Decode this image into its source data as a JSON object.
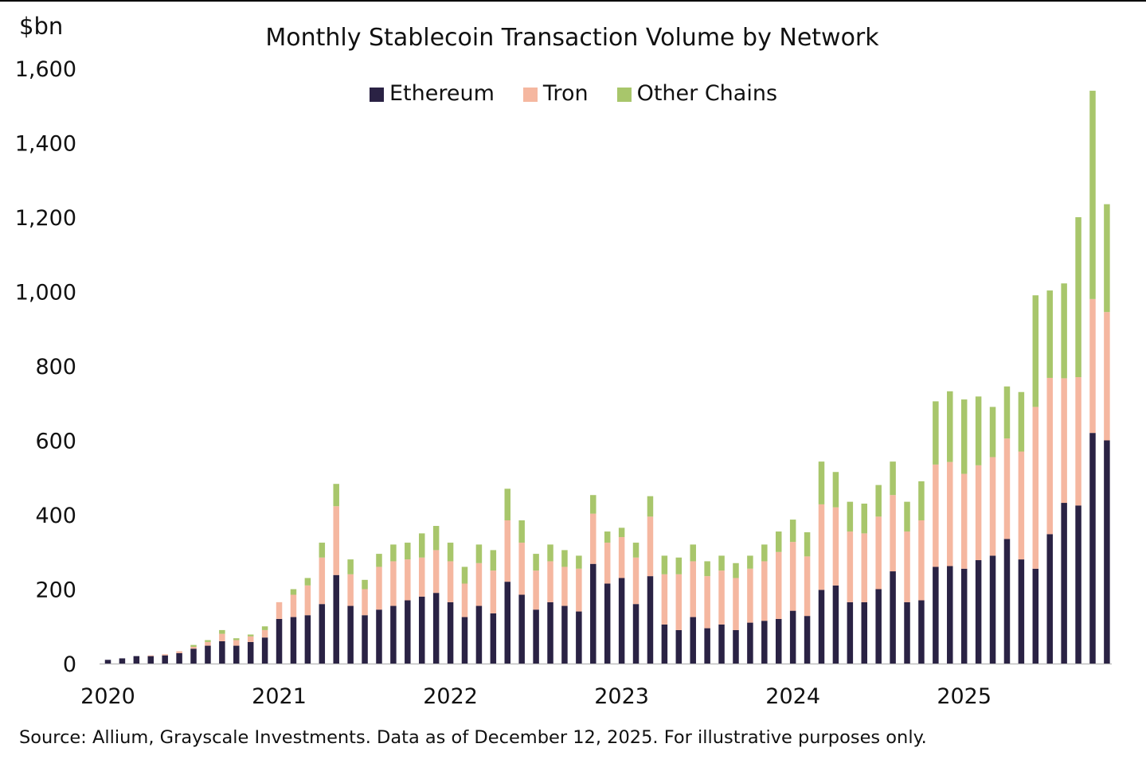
{
  "header": {
    "unit_label": "$bn",
    "title": "Monthly Stablecoin Transaction Volume by Network"
  },
  "legend": [
    {
      "label": "Ethereum",
      "color": "#2a2244"
    },
    {
      "label": "Tron",
      "color": "#f5b7a0"
    },
    {
      "label": "Other Chains",
      "color": "#a8c66b"
    }
  ],
  "footer": {
    "source": "Source: Allium, Grayscale Investments. Data as of December 12, 2025. For illustrative purposes only."
  },
  "chart_data": {
    "type": "bar",
    "stacked": true,
    "title": "Monthly Stablecoin Transaction Volume by Network",
    "ylabel": "$bn",
    "xlabel": "",
    "ylim": [
      0,
      1600
    ],
    "yticks": [
      0,
      200,
      400,
      600,
      800,
      1000,
      1200,
      1400,
      1600
    ],
    "yticklabels": [
      "0",
      "200",
      "400",
      "600",
      "800",
      "1,000",
      "1,200",
      "1,400",
      "1,600"
    ],
    "xticklabels": [
      "2020",
      "2021",
      "2022",
      "2023",
      "2024",
      "2025"
    ],
    "grid": false,
    "legend_position": "top-center",
    "categories": [
      "2020-01",
      "2020-02",
      "2020-03",
      "2020-04",
      "2020-05",
      "2020-06",
      "2020-07",
      "2020-08",
      "2020-09",
      "2020-10",
      "2020-11",
      "2020-12",
      "2021-01",
      "2021-02",
      "2021-03",
      "2021-04",
      "2021-05",
      "2021-06",
      "2021-07",
      "2021-08",
      "2021-09",
      "2021-10",
      "2021-11",
      "2021-12",
      "2022-01",
      "2022-02",
      "2022-03",
      "2022-04",
      "2022-05",
      "2022-06",
      "2022-07",
      "2022-08",
      "2022-09",
      "2022-10",
      "2022-11",
      "2022-12",
      "2023-01",
      "2023-02",
      "2023-03",
      "2023-04",
      "2023-05",
      "2023-06",
      "2023-07",
      "2023-08",
      "2023-09",
      "2023-10",
      "2023-11",
      "2023-12",
      "2024-01",
      "2024-02",
      "2024-03",
      "2024-04",
      "2024-05",
      "2024-06",
      "2024-07",
      "2024-08",
      "2024-09",
      "2024-10",
      "2024-11",
      "2024-12",
      "2025-01",
      "2025-02",
      "2025-03",
      "2025-04",
      "2025-05",
      "2025-06",
      "2025-07",
      "2025-08",
      "2025-09",
      "2025-10",
      "2025-11"
    ],
    "series": [
      {
        "name": "Ethereum",
        "color": "#2a2244",
        "values": [
          10,
          14,
          20,
          20,
          22,
          28,
          40,
          48,
          60,
          48,
          58,
          70,
          120,
          125,
          130,
          160,
          238,
          155,
          130,
          145,
          155,
          170,
          180,
          190,
          165,
          125,
          155,
          135,
          220,
          185,
          145,
          165,
          155,
          140,
          268,
          215,
          230,
          160,
          235,
          105,
          90,
          125,
          95,
          105,
          90,
          110,
          115,
          120,
          142,
          128,
          198,
          210,
          165,
          165,
          200,
          248,
          165,
          170,
          260,
          262,
          255,
          278,
          290,
          335,
          280,
          255,
          348,
          432,
          425,
          620,
          600
        ]
      },
      {
        "name": "Tron",
        "color": "#f5b7a0",
        "values": [
          0,
          0,
          0,
          2,
          3,
          5,
          5,
          10,
          20,
          15,
          15,
          20,
          45,
          60,
          80,
          125,
          185,
          85,
          70,
          115,
          120,
          110,
          105,
          115,
          110,
          90,
          115,
          115,
          165,
          140,
          105,
          110,
          105,
          115,
          135,
          110,
          110,
          125,
          160,
          135,
          150,
          150,
          140,
          145,
          140,
          145,
          160,
          180,
          185,
          160,
          230,
          210,
          190,
          185,
          195,
          205,
          190,
          215,
          275,
          280,
          255,
          255,
          265,
          270,
          290,
          435,
          420,
          335,
          345,
          360,
          345
        ]
      },
      {
        "name": "Other Chains",
        "color": "#a8c66b",
        "values": [
          0,
          0,
          0,
          0,
          0,
          0,
          5,
          5,
          10,
          5,
          5,
          10,
          0,
          15,
          20,
          40,
          60,
          40,
          25,
          35,
          45,
          45,
          65,
          65,
          50,
          45,
          50,
          55,
          85,
          60,
          45,
          45,
          45,
          35,
          50,
          30,
          25,
          40,
          55,
          50,
          45,
          45,
          40,
          40,
          40,
          35,
          45,
          55,
          60,
          65,
          115,
          95,
          80,
          80,
          85,
          90,
          80,
          105,
          170,
          190,
          200,
          185,
          135,
          140,
          160,
          300,
          235,
          255,
          430,
          560,
          290
        ]
      }
    ]
  }
}
